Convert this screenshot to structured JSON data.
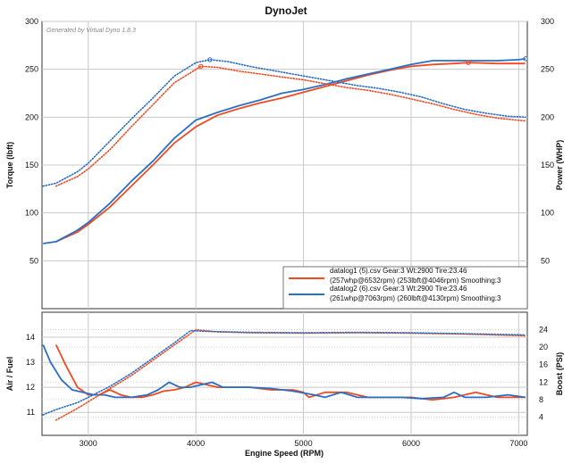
{
  "title": "DynoJet",
  "watermark": "Generated by Virtual Dyno 1.8.3",
  "colors": {
    "run1": "#f04a23",
    "run2": "#2a6fc4",
    "grid": "#c8c8c8",
    "frame": "#333333",
    "legend_border": "#555555"
  },
  "chart_data": [
    {
      "type": "line",
      "name": "power-torque",
      "ylabel_left": "Torque (lbft)",
      "ylabel_right": "Power (WHP)",
      "xlim": [
        2570,
        7080
      ],
      "ylim": [
        0,
        300
      ],
      "xticks": [
        3000,
        4000,
        5000,
        6000,
        7000
      ],
      "xtick_labels": [
        "3000",
        "4000",
        "5000",
        "6000",
        "7000"
      ],
      "yticks_left": [
        50,
        100,
        150,
        200,
        250,
        300
      ],
      "yticks_left_labels": [
        "50",
        "100",
        "150",
        "200",
        "250",
        "300"
      ],
      "yticks_right": [
        50,
        100,
        150,
        200,
        250,
        300
      ],
      "yticks_right_labels": [
        "50",
        "100",
        "150",
        "200",
        "250",
        "300"
      ],
      "grid": true,
      "legend_position": "bottom-right",
      "legend": [
        {
          "series": "run1",
          "line1": "datalog1 (5).csv Gear:3 Wt:2900 Tire:23.46",
          "line2": "(257whp@6532rpm) (253lbft@4046rpm) Smoothing:3"
        },
        {
          "series": "run2",
          "line1": "datalog2 (6).csv Gear:3 Wt:2900 Tire:23.46",
          "line2": "(261whp@7063rpm) (260lbft@4130rpm) Smoothing:3"
        }
      ],
      "series": [
        {
          "id": "run1-power",
          "color_key": "run1",
          "style": "solid",
          "x": [
            2700,
            2900,
            3000,
            3200,
            3400,
            3600,
            3800,
            4000,
            4200,
            4400,
            4600,
            4800,
            5000,
            5200,
            5400,
            5600,
            5800,
            6000,
            6200,
            6400,
            6532,
            6800,
            7060
          ],
          "y": [
            70,
            80,
            88,
            106,
            128,
            150,
            173,
            190,
            202,
            209,
            215,
            220,
            226,
            232,
            238,
            244,
            249,
            253,
            255,
            256,
            257,
            256,
            256
          ]
        },
        {
          "id": "run2-power",
          "color_key": "run2",
          "style": "solid",
          "x": [
            2580,
            2700,
            2900,
            3000,
            3200,
            3400,
            3600,
            3800,
            4000,
            4200,
            4400,
            4600,
            4800,
            5000,
            5200,
            5400,
            5600,
            5800,
            6000,
            6200,
            6400,
            6600,
            6800,
            7000,
            7063
          ],
          "y": [
            68,
            70,
            82,
            90,
            110,
            133,
            154,
            178,
            197,
            205,
            212,
            218,
            225,
            229,
            234,
            240,
            245,
            250,
            255,
            259,
            259,
            259,
            259,
            260,
            261
          ]
        },
        {
          "id": "run1-torque",
          "color_key": "run1",
          "style": "dotted",
          "x": [
            2700,
            2900,
            3000,
            3200,
            3400,
            3600,
            3800,
            4046,
            4200,
            4400,
            4600,
            4800,
            5000,
            5200,
            5400,
            5600,
            5800,
            6000,
            6200,
            6400,
            6600,
            6800,
            7060
          ],
          "y": [
            128,
            138,
            146,
            166,
            190,
            213,
            236,
            253,
            252,
            248,
            245,
            242,
            239,
            235,
            231,
            228,
            224,
            219,
            214,
            208,
            203,
            199,
            196
          ]
        },
        {
          "id": "run2-torque",
          "color_key": "run2",
          "style": "dotted",
          "x": [
            2580,
            2700,
            2900,
            3000,
            3200,
            3400,
            3600,
            3800,
            4000,
            4130,
            4300,
            4500,
            4700,
            4900,
            5100,
            5300,
            5500,
            5700,
            5900,
            6100,
            6300,
            6500,
            6700,
            6900,
            7063
          ],
          "y": [
            128,
            131,
            143,
            152,
            175,
            198,
            220,
            243,
            257,
            260,
            258,
            253,
            249,
            245,
            241,
            237,
            233,
            230,
            226,
            221,
            214,
            208,
            204,
            201,
            200
          ]
        }
      ],
      "markers": [
        {
          "color_key": "run1",
          "x": 4046,
          "y": 253
        },
        {
          "color_key": "run2",
          "x": 4130,
          "y": 260
        },
        {
          "color_key": "run1",
          "x": 6532,
          "y": 257
        },
        {
          "color_key": "run2",
          "x": 7063,
          "y": 261
        }
      ]
    },
    {
      "type": "line",
      "name": "afr-boost",
      "xlabel": "Engine Speed (RPM)",
      "ylabel_left": "Air / Fuel",
      "ylabel_right": "Boost (PSI)",
      "xlim": [
        2570,
        7080
      ],
      "ylim_left": [
        10.08,
        15
      ],
      "ylim_right": [
        -0.2,
        28
      ],
      "xticks": [
        3000,
        4000,
        5000,
        6000,
        7000
      ],
      "xtick_labels": [
        "3000",
        "4000",
        "5000",
        "6000",
        "7000"
      ],
      "yticks_left": [
        11,
        12,
        13,
        14
      ],
      "yticks_left_labels": [
        "11",
        "12",
        "13",
        "14"
      ],
      "yticks_right": [
        4,
        8,
        12,
        16,
        20,
        24
      ],
      "yticks_right_labels": [
        "4",
        "8",
        "12",
        "16",
        "20",
        "24"
      ],
      "grid": true,
      "series": [
        {
          "id": "run1-afr",
          "color_key": "run1",
          "style": "solid",
          "axis": "left",
          "x": [
            2700,
            2800,
            2900,
            3000,
            3100,
            3200,
            3300,
            3400,
            3500,
            3600,
            3700,
            3800,
            3900,
            4000,
            4100,
            4200,
            4300,
            4500,
            4700,
            4900,
            5000,
            5050,
            5200,
            5400,
            5600,
            5800,
            6000,
            6200,
            6400,
            6600,
            6800,
            7060
          ],
          "y": [
            13.7,
            12.8,
            12.0,
            11.7,
            11.7,
            11.9,
            11.7,
            11.6,
            11.6,
            11.7,
            11.85,
            11.9,
            12.0,
            12.2,
            12.1,
            12.0,
            12.0,
            12.0,
            11.9,
            11.9,
            11.8,
            11.6,
            11.8,
            11.8,
            11.6,
            11.6,
            11.6,
            11.5,
            11.6,
            11.8,
            11.6,
            11.6
          ]
        },
        {
          "id": "run2-afr",
          "color_key": "run2",
          "style": "solid",
          "axis": "left",
          "x": [
            2580,
            2650,
            2750,
            2850,
            2950,
            3050,
            3150,
            3250,
            3400,
            3550,
            3650,
            3750,
            3850,
            3950,
            4050,
            4150,
            4250,
            4500,
            4700,
            4900,
            5100,
            5200,
            5350,
            5500,
            5700,
            5900,
            6100,
            6300,
            6400,
            6500,
            6700,
            6900,
            7063
          ],
          "y": [
            13.7,
            13.0,
            12.3,
            11.9,
            11.8,
            11.7,
            11.7,
            11.6,
            11.6,
            11.7,
            11.9,
            12.2,
            12.0,
            12.0,
            12.1,
            12.2,
            12.0,
            12.0,
            11.95,
            11.85,
            11.7,
            11.6,
            11.8,
            11.6,
            11.6,
            11.6,
            11.55,
            11.6,
            11.8,
            11.6,
            11.6,
            11.7,
            11.6
          ]
        },
        {
          "id": "run1-boost",
          "color_key": "run1",
          "style": "dotted",
          "axis": "right",
          "x": [
            2700,
            2900,
            3000,
            3200,
            3400,
            3600,
            3800,
            4000,
            4200,
            4500,
            5000,
            5500,
            6000,
            6500,
            7060
          ],
          "y": [
            3.3,
            6,
            7.5,
            10.5,
            13.5,
            17,
            20.5,
            24,
            23.5,
            23.3,
            23.2,
            23.3,
            23.2,
            23.0,
            22.6
          ]
        },
        {
          "id": "run2-boost",
          "color_key": "run2",
          "style": "dotted",
          "axis": "right",
          "x": [
            2580,
            2700,
            2900,
            3000,
            3200,
            3400,
            3600,
            3800,
            3950,
            4100,
            4500,
            5000,
            5500,
            6000,
            6500,
            7063
          ],
          "y": [
            4.5,
            5.7,
            7.3,
            8.5,
            11,
            14,
            17.5,
            21,
            23.8,
            23.6,
            23.4,
            23.3,
            23.4,
            23.3,
            23.1,
            22.8
          ]
        }
      ]
    }
  ]
}
